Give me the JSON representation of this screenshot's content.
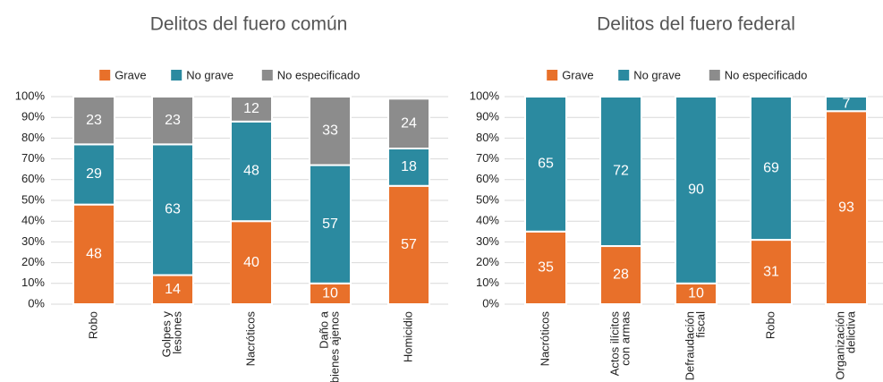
{
  "chart_data": [
    {
      "type": "stacked_bar",
      "title": "Delitos del fuero común",
      "categories": [
        [
          "Robo"
        ],
        [
          "Golpes y",
          "lesiones"
        ],
        [
          "Nacróticos"
        ],
        [
          "Daño a",
          "bienes ajenos"
        ],
        [
          "Homicidio"
        ]
      ],
      "series": [
        {
          "name": "Grave",
          "color": "#e8702a",
          "values": [
            48,
            14,
            40,
            10,
            57
          ]
        },
        {
          "name": "No grave",
          "color": "#2b8aa0",
          "values": [
            29,
            63,
            48,
            57,
            18
          ]
        },
        {
          "name": "No especificado",
          "color": "#8c8c8c",
          "values": [
            23,
            23,
            12,
            33,
            24
          ]
        }
      ],
      "ylim": [
        0,
        100
      ],
      "yticks": [
        {
          "value": 0,
          "label": "0%"
        },
        {
          "value": 10,
          "label": "10%"
        },
        {
          "value": 20,
          "label": "20%"
        },
        {
          "value": 30,
          "label": "30%"
        },
        {
          "value": 40,
          "label": "40%"
        },
        {
          "value": 50,
          "label": "50%"
        },
        {
          "value": 60,
          "label": "60%"
        },
        {
          "value": 70,
          "label": "70%"
        },
        {
          "value": 80,
          "label": "80%"
        },
        {
          "value": 90,
          "label": "90%"
        },
        {
          "value": 100,
          "label": "100%"
        }
      ],
      "grid": true,
      "legend": "top"
    },
    {
      "type": "stacked_bar",
      "title": "Delitos del fuero federal",
      "categories": [
        [
          "Nacróticos"
        ],
        [
          "Actos ilícitos",
          "con armas"
        ],
        [
          "Defraudación",
          "fiscal"
        ],
        [
          "Robo"
        ],
        [
          "Organización",
          "delictiva"
        ]
      ],
      "series": [
        {
          "name": "Grave",
          "color": "#e8702a",
          "values": [
            35,
            28,
            10,
            31,
            93
          ]
        },
        {
          "name": "No grave",
          "color": "#2b8aa0",
          "values": [
            65,
            72,
            90,
            69,
            7
          ]
        },
        {
          "name": "No especificado",
          "color": "#8c8c8c",
          "values": [
            null,
            null,
            null,
            null,
            null
          ]
        }
      ],
      "ylim": [
        0,
        100
      ],
      "yticks": [
        {
          "value": 0,
          "label": "0%"
        },
        {
          "value": 10,
          "label": "10%"
        },
        {
          "value": 20,
          "label": "20%"
        },
        {
          "value": 30,
          "label": "30%"
        },
        {
          "value": 40,
          "label": "40%"
        },
        {
          "value": 50,
          "label": "50%"
        },
        {
          "value": 60,
          "label": "60%"
        },
        {
          "value": 70,
          "label": "70%"
        },
        {
          "value": 80,
          "label": "80%"
        },
        {
          "value": 90,
          "label": "90%"
        },
        {
          "value": 100,
          "label": "100%"
        }
      ],
      "grid": true,
      "legend": "top"
    }
  ]
}
